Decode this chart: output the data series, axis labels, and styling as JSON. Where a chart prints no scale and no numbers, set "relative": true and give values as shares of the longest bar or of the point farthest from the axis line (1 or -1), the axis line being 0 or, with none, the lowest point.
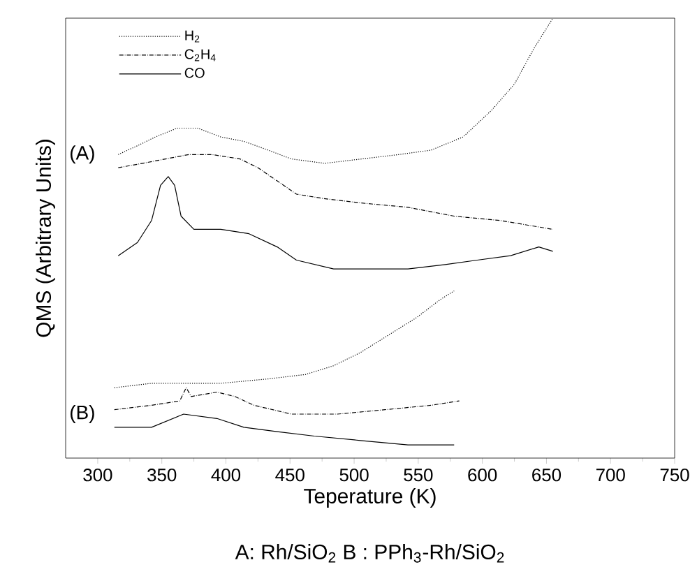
{
  "chart_data": {
    "type": "line",
    "relative": true,
    "xlabel": "Teperature (K)",
    "ylabel": "QMS (Arbitrary Units)",
    "xlim": [
      275,
      750
    ],
    "xticks": [
      300,
      350,
      400,
      450,
      500,
      550,
      600,
      650,
      700,
      750
    ],
    "legend": "top left",
    "grid": false,
    "marker": "none",
    "series": [
      {
        "name": "H$_{2}$",
        "color": "#000000",
        "line_style": "dotted",
        "x": [
          316,
          331,
          345,
          362,
          378,
          396,
          414,
          433,
          451,
          477,
          506,
          535,
          560,
          585,
          607,
          625,
          640,
          655
        ],
        "values": [
          0.69,
          0.71,
          0.73,
          0.75,
          0.75,
          0.73,
          0.72,
          0.7,
          0.68,
          0.67,
          0.68,
          0.69,
          0.7,
          0.73,
          0.79,
          0.85,
          0.93,
          1.0
        ]
      },
      {
        "name": "C$_{2}$H$_{4}$",
        "color": "#000000",
        "line_style": "dashdotted",
        "x": [
          316,
          335,
          353,
          371,
          389,
          411,
          425,
          440,
          455,
          476,
          505,
          542,
          578,
          614,
          655
        ],
        "values": [
          0.66,
          0.67,
          0.68,
          0.69,
          0.69,
          0.68,
          0.66,
          0.63,
          0.6,
          0.59,
          0.58,
          0.57,
          0.55,
          0.54,
          0.52
        ]
      },
      {
        "name": "CO",
        "color": "#000000",
        "line_style": "solid",
        "x": [
          316,
          331,
          342,
          349,
          355,
          360,
          365,
          375,
          396,
          418,
          440,
          455,
          484,
          513,
          542,
          571,
          596,
          622,
          644,
          655
        ],
        "values": [
          0.46,
          0.49,
          0.54,
          0.62,
          0.64,
          0.62,
          0.55,
          0.52,
          0.52,
          0.51,
          0.48,
          0.45,
          0.43,
          0.43,
          0.43,
          0.44,
          0.45,
          0.46,
          0.48,
          0.47
        ]
      },
      {
        "color": "#000000",
        "line_style": "dotted",
        "x": [
          313,
          342,
          371,
          396,
          433,
          462,
          484,
          505,
          527,
          549,
          567,
          578
        ],
        "values": [
          0.16,
          0.17,
          0.17,
          0.17,
          0.18,
          0.19,
          0.21,
          0.24,
          0.28,
          0.32,
          0.36,
          0.38
        ]
      },
      {
        "color": "#000000",
        "line_style": "dashdotted",
        "x": [
          313,
          342,
          364,
          369,
          373,
          393,
          407,
          422,
          451,
          487,
          524,
          560,
          582
        ],
        "values": [
          0.11,
          0.12,
          0.13,
          0.16,
          0.14,
          0.15,
          0.14,
          0.12,
          0.1,
          0.1,
          0.11,
          0.12,
          0.13
        ]
      },
      {
        "color": "#000000",
        "line_style": "solid",
        "x": [
          313,
          342,
          367,
          393,
          414,
          440,
          469,
          505,
          542,
          578
        ],
        "values": [
          0.07,
          0.07,
          0.1,
          0.09,
          0.07,
          0.06,
          0.05,
          0.04,
          0.03,
          0.03
        ]
      }
    ],
    "annotations": [
      {
        "text": "(A)",
        "x": 288,
        "y": 0.69
      },
      {
        "text": "(B)",
        "x": 288,
        "y": 0.1
      },
      "A: Rh/SiO$_{2}$    B : PPh$_{3}$-Rh/SiO$_{2}$"
    ]
  }
}
